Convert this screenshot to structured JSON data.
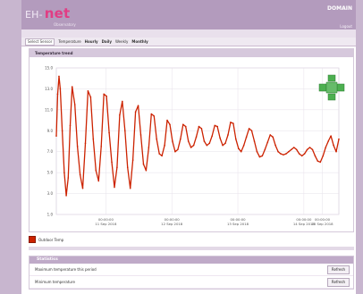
{
  "header": {
    "logo_prefix": "EH-",
    "logo_text": "net",
    "subtitle": "Observatory",
    "domain_label": "DOMAIN",
    "top_link": "Logout"
  },
  "nav": {
    "select_value": "Select Sensor",
    "items": [
      "Temperature",
      "Hourly",
      "Daily",
      "Weekly",
      "Monthly"
    ]
  },
  "panel": {
    "title": "Temperature trend"
  },
  "chart_data": {
    "type": "line",
    "title": "",
    "xlabel": "",
    "ylabel": "",
    "ylim": [
      1,
      15
    ],
    "yticks": [
      1,
      3,
      5,
      7,
      9,
      11,
      13,
      15
    ],
    "xticks": [
      {
        "time": "00:00:00",
        "date": "11 Sep 2018"
      },
      {
        "time": "00:00:00",
        "date": "12 Sep 2018"
      },
      {
        "time": "00:00:00",
        "date": "13 Sep 2018"
      },
      {
        "time": "00:00:00",
        "date": "14 Sep 2018"
      },
      {
        "time": "00:00:00",
        "date": "15 Sep 2018"
      }
    ],
    "series": [
      {
        "name": "Outdoor Temp",
        "color": "#cc2200",
        "x": [
          0.0,
          0.02,
          0.04,
          0.06,
          0.09,
          0.12,
          0.15,
          0.18,
          0.21,
          0.24,
          0.28,
          0.32,
          0.36,
          0.4,
          0.44,
          0.48,
          0.52,
          0.56,
          0.6,
          0.64,
          0.68,
          0.72,
          0.76,
          0.8,
          0.84,
          0.88,
          0.92,
          0.96,
          1.0,
          1.04,
          1.08,
          1.12,
          1.16,
          1.2,
          1.24,
          1.28,
          1.32,
          1.36,
          1.4,
          1.44,
          1.48,
          1.52,
          1.56,
          1.6,
          1.64,
          1.68,
          1.72,
          1.76,
          1.8,
          1.84,
          1.88,
          1.92,
          1.96,
          2.0,
          2.04,
          2.08,
          2.12,
          2.16,
          2.2,
          2.24,
          2.28,
          2.32,
          2.36,
          2.4,
          2.44,
          2.48,
          2.52,
          2.56,
          2.6,
          2.64,
          2.68,
          2.72,
          2.76,
          2.8,
          2.84,
          2.88,
          2.92,
          2.96,
          3.0,
          3.04,
          3.08,
          3.12,
          3.16,
          3.2,
          3.24,
          3.28,
          3.32,
          3.36,
          3.4,
          3.44,
          3.48,
          3.52,
          3.56,
          3.6,
          3.64,
          3.68,
          3.72,
          3.76,
          3.8,
          3.84,
          3.88,
          3.92,
          3.96,
          4.0,
          4.04,
          4.08,
          4.12,
          4.16,
          4.2,
          4.24,
          4.28
        ],
        "values": [
          8.5,
          12.5,
          14.2,
          13.0,
          9.0,
          5.0,
          2.8,
          4.5,
          9.5,
          13.2,
          11.5,
          7.5,
          4.8,
          3.5,
          7.8,
          12.8,
          12.2,
          8.2,
          5.2,
          4.2,
          7.5,
          12.5,
          12.3,
          8.8,
          6.0,
          3.6,
          5.5,
          10.5,
          11.8,
          9.0,
          5.5,
          3.5,
          6.2,
          10.8,
          11.4,
          8.6,
          5.8,
          5.2,
          7.4,
          10.6,
          10.4,
          8.2,
          6.8,
          6.6,
          7.6,
          10.0,
          9.6,
          8.0,
          7.0,
          7.2,
          8.2,
          9.6,
          9.4,
          8.0,
          7.4,
          7.6,
          8.4,
          9.4,
          9.2,
          8.0,
          7.6,
          7.8,
          8.5,
          9.5,
          9.4,
          8.3,
          7.6,
          7.8,
          8.6,
          9.8,
          9.7,
          8.2,
          7.3,
          7.0,
          7.6,
          8.4,
          9.2,
          9.0,
          8.0,
          7.0,
          6.5,
          6.6,
          7.2,
          7.9,
          8.6,
          8.4,
          7.6,
          7.0,
          6.8,
          6.7,
          6.8,
          7.0,
          7.2,
          7.4,
          7.2,
          6.8,
          6.6,
          6.8,
          7.2,
          7.4,
          7.2,
          6.6,
          6.1,
          6.0,
          6.6,
          7.4,
          8.0,
          8.5,
          7.6,
          7.0,
          8.2
        ]
      }
    ],
    "grid": true,
    "legend": "bottom-left"
  },
  "legend": {
    "label": "Outdoor Temp"
  },
  "lower_panel": {
    "title": "Statistics",
    "rows": [
      {
        "label": "Maximum temperature this period",
        "button": "Refresh"
      },
      {
        "label": "Minimum temperature",
        "button": "Refresh"
      }
    ]
  }
}
